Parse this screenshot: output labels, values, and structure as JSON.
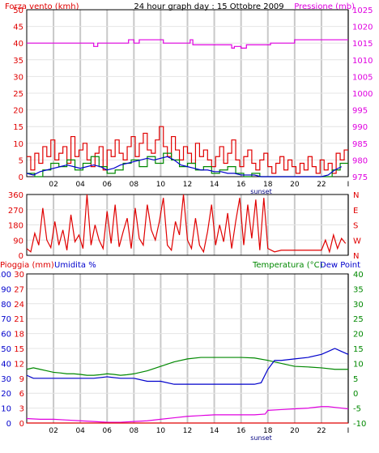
{
  "colors": {
    "red": "#e00000",
    "blue": "#0000cc",
    "green": "#008800",
    "magenta": "#e000e0",
    "black": "#000000",
    "grid": "#c8c8c8",
    "frame": "#000000"
  },
  "chart_data": [
    {
      "type": "line",
      "title": "24 hour graph day : 15 Ottobre 2009",
      "ylabel": "Forza vento (kmh)",
      "y2label": "Pressione (mb)",
      "x_ticks": [
        "02",
        "04",
        "06",
        "08",
        "10",
        "12",
        "14",
        "16",
        "18",
        "20",
        "22",
        "I"
      ],
      "x_annotation": "sunset",
      "x_annotation_hour": 16.5,
      "xlim": [
        0,
        24
      ],
      "ylim": [
        0,
        50
      ],
      "y_ticks": [
        "0",
        "5",
        "10",
        "15",
        "20",
        "25",
        "30",
        "35",
        "40",
        "45",
        "50"
      ],
      "y2lim": [
        975,
        1025
      ],
      "y2_ticks": [
        "975",
        "980",
        "985",
        "990",
        "995",
        "1000",
        "1005",
        "1010",
        "1015",
        "1020",
        "1025"
      ],
      "grid": true,
      "series": [
        {
          "axis": "y2",
          "color": "magenta",
          "x": [
            0,
            5.0,
            5.0,
            5.3,
            5.3,
            7.6,
            7.6,
            8.0,
            8.0,
            8.4,
            8.4,
            10.2,
            10.2,
            10.6,
            10.6,
            12.2,
            12.2,
            12.4,
            12.4,
            15.3,
            15.3,
            15.5,
            15.5,
            16.0,
            16.0,
            16.4,
            16.4,
            18.2,
            18.2,
            20.0,
            20.0,
            24
          ],
          "y": [
            1015,
            1015,
            1014,
            1014,
            1015,
            1015,
            1016,
            1016,
            1015,
            1015,
            1016,
            1016,
            1015,
            1015,
            1015,
            1015,
            1016,
            1016,
            1014.5,
            1014.5,
            1013.5,
            1013.5,
            1014,
            1014,
            1013.5,
            1013.5,
            1014.5,
            1014.5,
            1015,
            1015,
            1016,
            1016
          ]
        },
        {
          "axis": "y",
          "color": "red",
          "style": "step",
          "x": [
            0,
            0.3,
            0.6,
            0.9,
            1.2,
            1.5,
            1.8,
            2.1,
            2.4,
            2.7,
            3.0,
            3.3,
            3.6,
            3.9,
            4.2,
            4.5,
            4.8,
            5.1,
            5.4,
            5.7,
            6.0,
            6.3,
            6.6,
            6.9,
            7.2,
            7.5,
            7.8,
            8.1,
            8.4,
            8.7,
            9.0,
            9.3,
            9.6,
            9.9,
            10.2,
            10.5,
            10.8,
            11.1,
            11.4,
            11.7,
            12.0,
            12.3,
            12.6,
            12.9,
            13.2,
            13.5,
            13.8,
            14.1,
            14.4,
            14.7,
            15.0,
            15.3,
            15.6,
            15.9,
            16.2,
            16.5,
            16.8,
            17.1,
            17.4,
            17.7,
            18.0,
            18.3,
            18.6,
            18.9,
            19.2,
            19.5,
            19.8,
            20.1,
            20.4,
            20.7,
            21.0,
            21.3,
            21.6,
            21.9,
            22.2,
            22.5,
            22.8,
            23.1,
            23.4,
            23.7
          ],
          "y": [
            6,
            2,
            7,
            4,
            9,
            6,
            11,
            5,
            7,
            9,
            4,
            12,
            6,
            8,
            10,
            5,
            3,
            7,
            9,
            2,
            8,
            6,
            11,
            7,
            5,
            9,
            12,
            6,
            10,
            13,
            8,
            7,
            11,
            15,
            9,
            6,
            12,
            8,
            5,
            9,
            7,
            4,
            10,
            6,
            8,
            5,
            3,
            6,
            9,
            4,
            7,
            11,
            5,
            3,
            6,
            8,
            4,
            2,
            5,
            7,
            3,
            1,
            4,
            6,
            2,
            5,
            3,
            1,
            4,
            2,
            6,
            3,
            1,
            5,
            2,
            4,
            1,
            7,
            5,
            8
          ]
        },
        {
          "axis": "y",
          "color": "green",
          "style": "step",
          "x": [
            0,
            0.6,
            1.2,
            1.8,
            2.4,
            3.0,
            3.6,
            4.2,
            4.8,
            5.4,
            6.0,
            6.6,
            7.2,
            7.8,
            8.4,
            9.0,
            9.6,
            10.2,
            10.8,
            11.4,
            12.0,
            12.6,
            13.2,
            13.8,
            14.4,
            15.0,
            15.6,
            16.2,
            16.8,
            17.4,
            18.0,
            18.6,
            19.2,
            19.8,
            20.4,
            21.0,
            21.6,
            22.2,
            22.8,
            23.4
          ],
          "y": [
            1,
            0,
            2,
            4,
            3,
            5,
            2,
            4,
            6,
            3,
            1,
            2,
            4,
            5,
            3,
            6,
            4,
            7,
            5,
            3,
            4,
            2,
            3,
            1,
            2,
            3,
            1,
            0,
            1,
            0,
            0,
            0,
            0,
            0,
            0,
            0,
            0,
            0,
            2,
            4
          ]
        },
        {
          "axis": "y",
          "color": "blue",
          "x": [
            0,
            0.5,
            1.0,
            1.5,
            2.0,
            2.5,
            3.0,
            3.5,
            4.0,
            4.5,
            5.0,
            5.5,
            6.0,
            6.5,
            7.0,
            7.5,
            8.0,
            8.5,
            9.0,
            9.5,
            10.0,
            10.5,
            11.0,
            11.5,
            12.0,
            12.5,
            13.0,
            13.5,
            14.0,
            14.5,
            15.0,
            15.5,
            16.0,
            16.5,
            17.0,
            17.5,
            18.0,
            19.0,
            20.0,
            21.0,
            22.0,
            22.5,
            23.0,
            23.5
          ],
          "y": [
            1,
            0.5,
            1.5,
            2,
            2.5,
            3,
            3.5,
            3,
            2.5,
            3,
            3.5,
            3,
            2,
            2.5,
            3.5,
            4,
            4.5,
            5,
            5.5,
            5,
            5.5,
            6,
            5,
            3.5,
            3,
            2.5,
            2,
            2,
            1.5,
            1.5,
            1,
            1,
            0.5,
            0.5,
            0.5,
            0,
            0,
            0,
            0,
            0,
            0,
            0.5,
            2,
            3
          ]
        }
      ]
    },
    {
      "type": "line",
      "y_ticks": [
        "0",
        "90",
        "180",
        "270",
        "360"
      ],
      "ylim": [
        0,
        360
      ],
      "y2_ticks": [
        "N",
        "W",
        "S",
        "E",
        "N"
      ],
      "xlim": [
        0,
        24
      ],
      "grid": true,
      "series": [
        {
          "color": "red",
          "x": [
            0,
            0.3,
            0.6,
            0.9,
            1.2,
            1.5,
            1.8,
            2.1,
            2.4,
            2.7,
            3.0,
            3.3,
            3.6,
            3.9,
            4.2,
            4.5,
            4.8,
            5.1,
            5.4,
            5.7,
            6.0,
            6.3,
            6.6,
            6.9,
            7.2,
            7.5,
            7.8,
            8.1,
            8.4,
            8.7,
            9.0,
            9.3,
            9.6,
            9.9,
            10.2,
            10.5,
            10.8,
            11.1,
            11.4,
            11.7,
            12.0,
            12.3,
            12.6,
            12.9,
            13.2,
            13.5,
            13.8,
            14.1,
            14.4,
            14.7,
            15.0,
            15.3,
            15.6,
            15.9,
            16.2,
            16.5,
            16.8,
            17.1,
            17.4,
            17.7,
            18.0,
            18.5,
            19.0,
            19.5,
            20.0,
            20.5,
            21.0,
            21.5,
            22.0,
            22.3,
            22.6,
            22.9,
            23.2,
            23.5,
            23.8
          ],
          "y": [
            40,
            20,
            130,
            60,
            280,
            90,
            45,
            200,
            60,
            150,
            30,
            240,
            80,
            120,
            40,
            360,
            60,
            180,
            90,
            40,
            260,
            70,
            300,
            50,
            140,
            220,
            40,
            280,
            100,
            60,
            300,
            150,
            90,
            200,
            340,
            60,
            30,
            200,
            120,
            360,
            90,
            40,
            220,
            60,
            20,
            140,
            300,
            60,
            180,
            80,
            250,
            40,
            200,
            340,
            60,
            300,
            100,
            330,
            30,
            340,
            40,
            20,
            30,
            30,
            30,
            30,
            30,
            30,
            30,
            90,
            20,
            120,
            40,
            100,
            70
          ]
        }
      ]
    },
    {
      "type": "line",
      "ylabel": "Pioggia (mm)",
      "ylabel_humidity": "Umidita %",
      "y2label": "Temperatura (°C)",
      "y2label_dew": "Dew Point",
      "x_ticks": [
        "02",
        "04",
        "06",
        "08",
        "10",
        "12",
        "14",
        "16",
        "18",
        "20",
        "22",
        "I"
      ],
      "x_annotation": "sunset",
      "xlim": [
        0,
        24
      ],
      "y_rain_ticks": [
        "0",
        "3",
        "6",
        "9",
        "12",
        "15",
        "18",
        "21",
        "24",
        "27",
        "30"
      ],
      "y_hum_ticks": [
        "0",
        "10",
        "20",
        "30",
        "40",
        "50",
        "60",
        "70",
        "80",
        "90",
        "100"
      ],
      "y2_ticks": [
        "-10",
        "-5",
        "0",
        "5",
        "10",
        "15",
        "20",
        "25",
        "30",
        "35",
        "40"
      ],
      "y2lim": [
        -10,
        40
      ],
      "grid": true,
      "series": [
        {
          "name": "Temperatura",
          "axis": "y2",
          "color": "green",
          "x": [
            0,
            0.5,
            1,
            1.5,
            2,
            2.5,
            3,
            3.5,
            4,
            4.5,
            5,
            5.5,
            6,
            6.5,
            7,
            7.5,
            8,
            8.5,
            9,
            10,
            11,
            12,
            13,
            14,
            15,
            16,
            17,
            18,
            19,
            20,
            21,
            22,
            23,
            24
          ],
          "y": [
            8,
            8.5,
            8,
            7.5,
            7,
            6.8,
            6.5,
            6.5,
            6.3,
            6,
            6,
            6.2,
            6.5,
            6.3,
            6,
            6.2,
            6.5,
            7,
            7.5,
            9,
            10.5,
            11.5,
            12,
            12,
            12,
            12,
            11.8,
            11,
            10,
            9,
            8.8,
            8.5,
            8,
            8
          ]
        },
        {
          "name": "Dew Point",
          "axis": "y2",
          "color": "blue",
          "x": [
            0,
            0.5,
            1,
            2,
            3,
            4,
            5,
            6,
            7,
            8,
            9,
            10,
            11,
            12,
            13,
            14,
            15,
            16,
            17,
            17.5,
            18,
            18.5,
            19,
            20,
            21,
            22,
            22.5,
            23,
            23.5,
            24
          ],
          "y": [
            6,
            5,
            5,
            5,
            5,
            5,
            5,
            5.5,
            5,
            5,
            4,
            4,
            3,
            3,
            3,
            3,
            3,
            3,
            3,
            3.5,
            8,
            11,
            11,
            11.5,
            12,
            13,
            14,
            15,
            14,
            13
          ]
        },
        {
          "name": "Umidita %",
          "axis": "y_hum",
          "color": "magenta",
          "x": [
            0,
            1,
            2,
            3,
            4,
            5,
            6,
            7,
            8,
            9,
            10,
            11,
            12,
            13,
            14,
            15,
            16,
            17,
            17.8,
            18,
            19,
            20,
            21,
            22,
            22.5,
            23,
            24
          ],
          "y": [
            3,
            2.5,
            2.5,
            2,
            1.5,
            1,
            0.5,
            0.5,
            1,
            1.5,
            2.5,
            3.5,
            4.5,
            5,
            5.5,
            5.5,
            5.5,
            5.5,
            6,
            8.5,
            9,
            9.5,
            10,
            11,
            11,
            10.5,
            9.5
          ]
        },
        {
          "name": "Pioggia (mm)",
          "axis": "y_rain",
          "color": "red",
          "x": [
            0,
            24
          ],
          "y": [
            0,
            0
          ]
        }
      ]
    }
  ]
}
